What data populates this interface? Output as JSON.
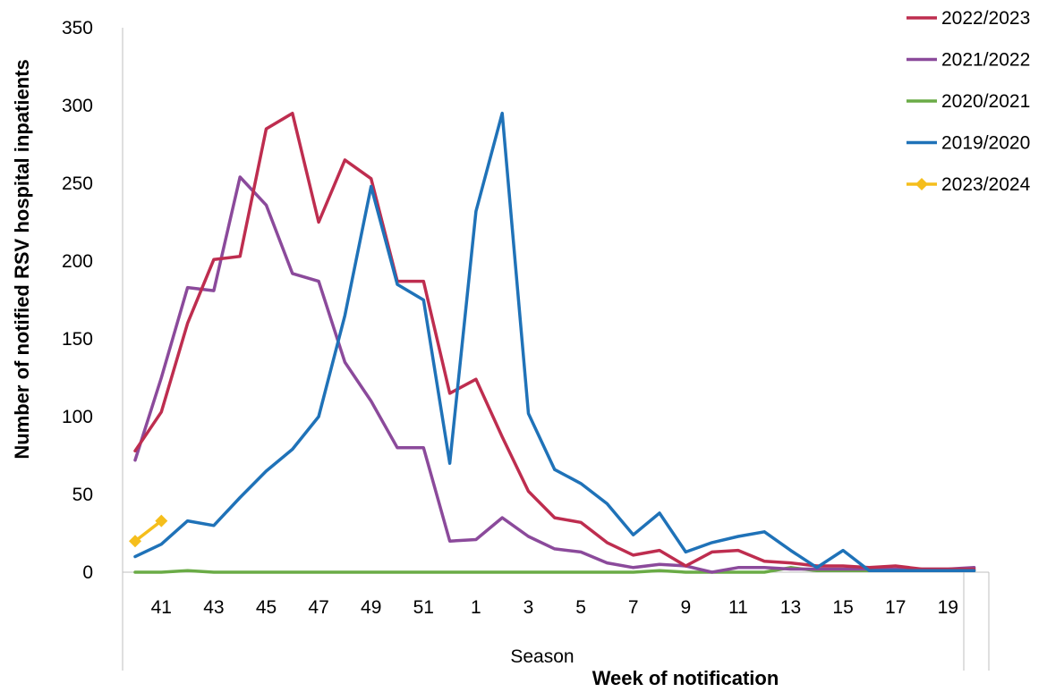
{
  "chart_data": {
    "type": "line",
    "xlabel": "Week of notification",
    "x_sublabel": "Season",
    "ylabel": "Number of notified RSV hospital inpatients",
    "ylim": [
      0,
      350
    ],
    "y_ticks": [
      "0",
      "50",
      "100",
      "150",
      "200",
      "250",
      "300",
      "350"
    ],
    "weeks": [
      40,
      41,
      42,
      43,
      44,
      45,
      46,
      47,
      48,
      49,
      50,
      51,
      52,
      1,
      2,
      3,
      4,
      5,
      6,
      7,
      8,
      9,
      10,
      11,
      12,
      13,
      14,
      15,
      16,
      17,
      18,
      19,
      20
    ],
    "x_tick_labels": [
      "41",
      "43",
      "45",
      "47",
      "49",
      "51",
      "1",
      "3",
      "5",
      "7",
      "9",
      "11",
      "13",
      "15",
      "17",
      "19"
    ],
    "legend_position": "top-right",
    "series": [
      {
        "name": "2022/2023",
        "color": "#be2d4f",
        "marker": "none",
        "values": [
          78,
          103,
          160,
          201,
          203,
          285,
          295,
          225,
          265,
          253,
          187,
          187,
          115,
          124,
          87,
          52,
          35,
          32,
          19,
          11,
          14,
          4,
          13,
          14,
          7,
          6,
          4,
          4,
          3,
          4,
          2,
          2,
          2
        ]
      },
      {
        "name": "2021/2022",
        "color": "#8b4a9b",
        "marker": "none",
        "values": [
          72,
          125,
          183,
          181,
          254,
          236,
          192,
          187,
          135,
          110,
          80,
          80,
          20,
          21,
          35,
          23,
          15,
          13,
          6,
          3,
          5,
          4,
          0,
          3,
          3,
          2,
          2,
          2,
          2,
          2,
          2,
          2,
          3
        ]
      },
      {
        "name": "2020/2021",
        "color": "#6aab46",
        "marker": "none",
        "values": [
          0,
          0,
          1,
          0,
          0,
          0,
          0,
          0,
          0,
          0,
          0,
          0,
          0,
          0,
          0,
          0,
          0,
          0,
          0,
          0,
          1,
          0,
          0,
          0,
          0,
          3,
          1,
          1,
          1,
          1,
          1,
          1,
          1
        ]
      },
      {
        "name": "2019/2020",
        "color": "#1f72b8",
        "marker": "none",
        "values": [
          10,
          18,
          33,
          30,
          48,
          65,
          79,
          100,
          165,
          248,
          185,
          175,
          70,
          232,
          295,
          102,
          66,
          57,
          44,
          24,
          38,
          13,
          19,
          23,
          26,
          14,
          3,
          14,
          1,
          1,
          1,
          1,
          1
        ]
      },
      {
        "name": "2023/2024",
        "color": "#f5be1c",
        "marker": "diamond",
        "values": [
          20,
          33
        ]
      }
    ]
  }
}
